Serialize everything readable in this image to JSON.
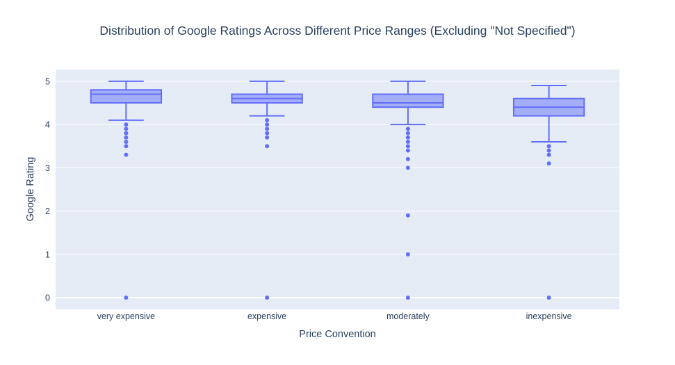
{
  "chart_data": {
    "type": "box",
    "title": "Distribution of Google Ratings Across Different Price Ranges (Excluding \"Not Specified\")",
    "xlabel": "Price Convention",
    "ylabel": "Google Rating",
    "categories": [
      "very expensive",
      "expensive",
      "moderately",
      "inexpensive"
    ],
    "ylim": [
      -0.27,
      5.27
    ],
    "yticks": [
      0,
      1,
      2,
      3,
      4,
      5
    ],
    "grid": true,
    "colors": {
      "box": "#636efa",
      "box_fill": "rgba(99,110,250,0.5)",
      "plot_bg": "#e5ecf6",
      "grid": "#ffffff",
      "text": "#2a3f5f"
    },
    "boxes": [
      {
        "category": "very expensive",
        "lowerfence": 4.1,
        "q1": 4.5,
        "median": 4.7,
        "q3": 4.8,
        "upperfence": 5.0,
        "outliers": [
          4.0,
          3.9,
          3.8,
          3.7,
          3.6,
          3.5,
          3.3,
          0.0
        ]
      },
      {
        "category": "expensive",
        "lowerfence": 4.2,
        "q1": 4.5,
        "median": 4.6,
        "q3": 4.7,
        "upperfence": 5.0,
        "outliers": [
          4.1,
          4.0,
          3.9,
          3.8,
          3.7,
          3.5,
          0.0
        ]
      },
      {
        "category": "moderately",
        "lowerfence": 4.0,
        "q1": 4.4,
        "median": 4.5,
        "q3": 4.7,
        "upperfence": 5.0,
        "outliers": [
          3.9,
          3.8,
          3.7,
          3.6,
          3.5,
          3.4,
          3.2,
          3.0,
          1.9,
          1.0,
          0.0
        ]
      },
      {
        "category": "inexpensive",
        "lowerfence": 3.6,
        "q1": 4.2,
        "median": 4.4,
        "q3": 4.6,
        "upperfence": 4.9,
        "outliers": [
          3.5,
          3.4,
          3.3,
          3.1,
          0.0
        ]
      }
    ]
  }
}
